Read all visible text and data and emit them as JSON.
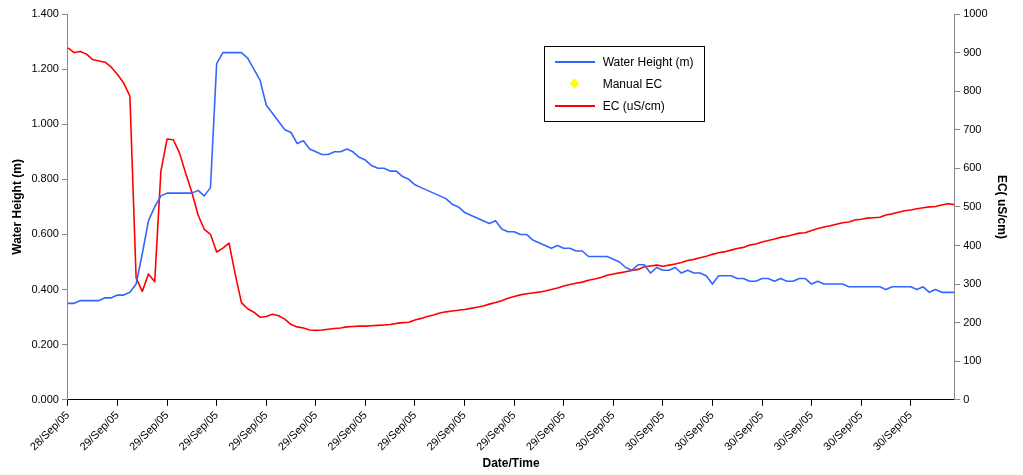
{
  "chart_data": {
    "type": "line",
    "xlabel": "Date/Time",
    "ylabel": "Water Height (m)",
    "y2label": "EC( uS/cm)",
    "categories": [
      "28/Sep/05",
      null,
      null,
      null,
      null,
      null,
      null,
      null,
      "29/Sep/05",
      null,
      null,
      null,
      null,
      null,
      null,
      null,
      "29/Sep/05",
      null,
      null,
      null,
      null,
      null,
      null,
      null,
      "29/Sep/05",
      null,
      null,
      null,
      null,
      null,
      null,
      null,
      "29/Sep/05",
      null,
      null,
      null,
      null,
      null,
      null,
      null,
      "29/Sep/05",
      null,
      null,
      null,
      null,
      null,
      null,
      null,
      "29/Sep/05",
      null,
      null,
      null,
      null,
      null,
      null,
      null,
      "29/Sep/05",
      null,
      null,
      null,
      null,
      null,
      null,
      null,
      "29/Sep/05",
      null,
      null,
      null,
      null,
      null,
      null,
      null,
      "29/Sep/05",
      null,
      null,
      null,
      null,
      null,
      null,
      null,
      "29/Sep/05",
      null,
      null,
      null,
      null,
      null,
      null,
      null,
      "30/Sep/05",
      null,
      null,
      null,
      null,
      null,
      null,
      null,
      "30/Sep/05",
      null,
      null,
      null,
      null,
      null,
      null,
      null,
      "30/Sep/05",
      null,
      null,
      null,
      null,
      null,
      null,
      null,
      "30/Sep/05",
      null,
      null,
      null,
      null,
      null,
      null,
      null,
      "30/Sep/05",
      null,
      null,
      null,
      null,
      null,
      null,
      null,
      "30/Sep/05",
      null,
      null,
      null,
      null,
      null,
      null,
      null,
      "30/Sep/05",
      null,
      null,
      null,
      null,
      null,
      null,
      null
    ],
    "series": [
      {
        "name": "Water Height (m)",
        "color": "#3366ff",
        "values": [
          0.35,
          0.35,
          0.36,
          0.36,
          0.36,
          0.36,
          0.37,
          0.37,
          0.38,
          0.38,
          0.39,
          0.42,
          0.53,
          0.65,
          0.7,
          0.74,
          0.75,
          0.75,
          0.75,
          0.75,
          0.75,
          0.76,
          0.74,
          0.77,
          1.22,
          1.26,
          1.26,
          1.26,
          1.26,
          1.24,
          1.2,
          1.16,
          1.07,
          1.04,
          1.01,
          0.98,
          0.97,
          0.93,
          0.94,
          0.91,
          0.9,
          0.89,
          0.89,
          0.9,
          0.9,
          0.91,
          0.9,
          0.88,
          0.87,
          0.85,
          0.84,
          0.84,
          0.83,
          0.83,
          0.81,
          0.8,
          0.78,
          0.77,
          0.76,
          0.75,
          0.74,
          0.73,
          0.71,
          0.7,
          0.68,
          0.67,
          0.66,
          0.65,
          0.64,
          0.65,
          0.62,
          0.61,
          0.61,
          0.6,
          0.6,
          0.58,
          0.57,
          0.56,
          0.55,
          0.56,
          0.55,
          0.55,
          0.54,
          0.54,
          0.52,
          0.52,
          0.52,
          0.52,
          0.51,
          0.5,
          0.48,
          0.47,
          0.49,
          0.49,
          0.46,
          0.48,
          0.47,
          0.47,
          0.48,
          0.46,
          0.47,
          0.46,
          0.46,
          0.45,
          0.42,
          0.45,
          0.45,
          0.45,
          0.44,
          0.44,
          0.43,
          0.43,
          0.44,
          0.44,
          0.43,
          0.44,
          0.43,
          0.43,
          0.44,
          0.44,
          0.42,
          0.43,
          0.42,
          0.42,
          0.42,
          0.42,
          0.41,
          0.41,
          0.41,
          0.41,
          0.41,
          0.41,
          0.4,
          0.41,
          0.41,
          0.41,
          0.41,
          0.4,
          0.41,
          0.39,
          0.4,
          0.39,
          0.39,
          0.39
        ]
      },
      {
        "name": "Manual EC",
        "type": "scatter",
        "axis": "y2",
        "marker": "diamond",
        "color": "#ffff00",
        "values": [
          null,
          null,
          null,
          null,
          null,
          null,
          null,
          null,
          null,
          null,
          null,
          null,
          null,
          null,
          null,
          null,
          null,
          null,
          null,
          null,
          null,
          null,
          null,
          null,
          null,
          null,
          null,
          null,
          null,
          null,
          null,
          null,
          null,
          null,
          null,
          null,
          null,
          null,
          null,
          null,
          null,
          null,
          null,
          null,
          null,
          null,
          null,
          null,
          null,
          null,
          null,
          null,
          null,
          null,
          null,
          null,
          null,
          null,
          null,
          null,
          null,
          null,
          null,
          null,
          null,
          null,
          null,
          null,
          null,
          null,
          null,
          null,
          null,
          null,
          null,
          null,
          null,
          null,
          null,
          null,
          null,
          null,
          null,
          null,
          null,
          null,
          null,
          null,
          null,
          null,
          null,
          null,
          null,
          null,
          null,
          null,
          null,
          null,
          null,
          null,
          null,
          null,
          null,
          null,
          null,
          null,
          null,
          null,
          null,
          null,
          null,
          null,
          null,
          null,
          null,
          null,
          null,
          null,
          null,
          null,
          null,
          null,
          null,
          null,
          null,
          null,
          null,
          null,
          null,
          null,
          null,
          null,
          null,
          null,
          null,
          null,
          null,
          null,
          null,
          null,
          null,
          null,
          null,
          null
        ]
      },
      {
        "name": "EC (uS/cm)",
        "axis": "y2",
        "color": "#ff0000",
        "values": [
          912,
          900,
          903,
          896,
          882,
          878,
          875,
          862,
          843,
          821,
          787,
          316,
          281,
          326,
          306,
          592,
          676,
          674,
          640,
          587,
          538,
          479,
          442,
          429,
          383,
          393,
          406,
          325,
          252,
          236,
          227,
          214,
          216,
          222,
          218,
          209,
          195,
          189,
          186,
          181,
          180,
          181,
          183,
          185,
          186,
          189,
          190,
          191,
          191,
          192,
          193,
          194,
          195,
          198,
          200,
          201,
          207,
          211,
          216,
          220,
          225,
          228,
          230,
          232,
          234,
          237,
          240,
          243,
          248,
          252,
          257,
          263,
          268,
          272,
          275,
          277,
          279,
          282,
          286,
          290,
          295,
          299,
          302,
          305,
          310,
          313,
          317,
          323,
          326,
          329,
          332,
          335,
          338,
          345,
          347,
          349,
          346,
          349,
          352,
          356,
          361,
          364,
          368,
          372,
          377,
          381,
          384,
          388,
          392,
          395,
          401,
          404,
          409,
          413,
          417,
          421,
          424,
          428,
          432,
          433,
          439,
          444,
          448,
          451,
          455,
          459,
          461,
          466,
          468,
          471,
          472,
          473,
          479,
          482,
          486,
          490,
          492,
          495,
          498,
          500,
          501,
          505,
          508,
          506
        ]
      }
    ],
    "ylim": [
      0,
      1.4
    ],
    "yticks": [
      {
        "value": 0,
        "label": "0.000"
      },
      {
        "value": 0.2,
        "label": "0.200"
      },
      {
        "value": 0.4,
        "label": "0.400"
      },
      {
        "value": 0.6,
        "label": "0.600"
      },
      {
        "value": 0.8,
        "label": "0.800"
      },
      {
        "value": 1.0,
        "label": "1.000"
      },
      {
        "value": 1.2,
        "label": "1.200"
      },
      {
        "value": 1.4,
        "label": "1.400"
      }
    ],
    "y2lim": [
      0,
      1000
    ],
    "y2ticks": [
      0,
      100,
      200,
      300,
      400,
      500,
      600,
      700,
      800,
      900,
      1000
    ],
    "grid": false,
    "legend": "top",
    "marker": "none",
    "line_style": "solid"
  }
}
